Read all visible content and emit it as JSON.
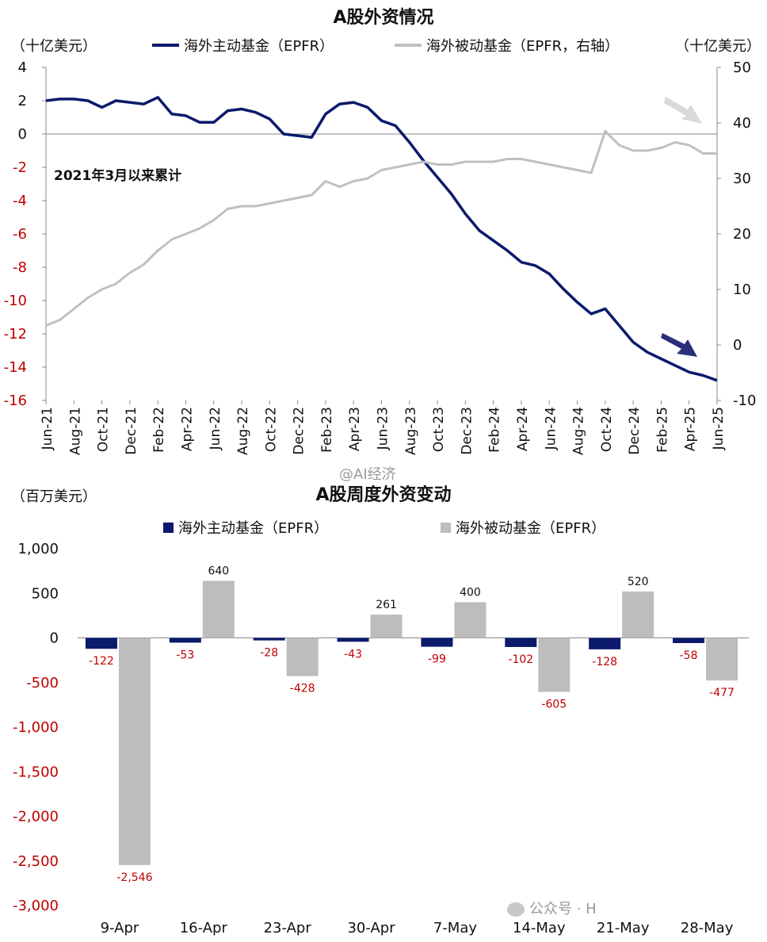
{
  "chart_data": [
    {
      "type": "line",
      "title": "A股外资情况",
      "ylabel": "（十亿美元）",
      "y2label": "（十亿美元）",
      "annotation": "2021年3月以来累计",
      "ylim": [
        -16,
        4
      ],
      "y2lim": [
        -10,
        50
      ],
      "grid": false,
      "legend_position": "top",
      "x_ticks": [
        "Jun-21",
        "Aug-21",
        "Oct-21",
        "Dec-21",
        "Feb-22",
        "Apr-22",
        "Jun-22",
        "Aug-22",
        "Oct-22",
        "Dec-22",
        "Feb-23",
        "Apr-23",
        "Jun-23",
        "Aug-23",
        "Oct-23",
        "Dec-23",
        "Feb-24",
        "Apr-24",
        "Jun-24",
        "Aug-24",
        "Oct-24",
        "Dec-24",
        "Feb-25",
        "Apr-25",
        "Jun-25"
      ],
      "y_ticks": [
        "4",
        "2",
        "0",
        "-2",
        "-4",
        "-6",
        "-8",
        "-10",
        "-12",
        "-14",
        "-16"
      ],
      "y2_ticks": [
        "50",
        "40",
        "30",
        "20",
        "10",
        "0",
        "-10"
      ],
      "series": [
        {
          "name": "海外主动基金（EPFR）",
          "axis": "left",
          "color": "#0b1a6b",
          "values": [
            [
              "Jun-21",
              2.0
            ],
            [
              "Jul-21",
              2.1
            ],
            [
              "Aug-21",
              2.1
            ],
            [
              "Sep-21",
              2.0
            ],
            [
              "Oct-21",
              1.6
            ],
            [
              "Nov-21",
              2.0
            ],
            [
              "Dec-21",
              1.9
            ],
            [
              "Jan-22",
              1.8
            ],
            [
              "Feb-22",
              2.2
            ],
            [
              "Mar-22",
              1.2
            ],
            [
              "Apr-22",
              1.1
            ],
            [
              "May-22",
              0.7
            ],
            [
              "Jun-22",
              0.7
            ],
            [
              "Jul-22",
              1.4
            ],
            [
              "Aug-22",
              1.5
            ],
            [
              "Sep-22",
              1.3
            ],
            [
              "Oct-22",
              0.9
            ],
            [
              "Nov-22",
              0.0
            ],
            [
              "Dec-22",
              -0.1
            ],
            [
              "Jan-23",
              -0.2
            ],
            [
              "Feb-23",
              1.2
            ],
            [
              "Mar-23",
              1.8
            ],
            [
              "Apr-23",
              1.9
            ],
            [
              "May-23",
              1.6
            ],
            [
              "Jun-23",
              0.8
            ],
            [
              "Jul-23",
              0.5
            ],
            [
              "Aug-23",
              -0.5
            ],
            [
              "Sep-23",
              -1.6
            ],
            [
              "Oct-23",
              -2.6
            ],
            [
              "Nov-23",
              -3.6
            ],
            [
              "Dec-23",
              -4.8
            ],
            [
              "Jan-24",
              -5.8
            ],
            [
              "Feb-24",
              -6.4
            ],
            [
              "Mar-24",
              -7.0
            ],
            [
              "Apr-24",
              -7.7
            ],
            [
              "May-24",
              -7.9
            ],
            [
              "Jun-24",
              -8.4
            ],
            [
              "Jul-24",
              -9.3
            ],
            [
              "Aug-24",
              -10.1
            ],
            [
              "Sep-24",
              -10.8
            ],
            [
              "Oct-24",
              -10.5
            ],
            [
              "Nov-24",
              -11.5
            ],
            [
              "Dec-24",
              -12.5
            ],
            [
              "Jan-25",
              -13.1
            ],
            [
              "Feb-25",
              -13.5
            ],
            [
              "Mar-25",
              -13.9
            ],
            [
              "Apr-25",
              -14.3
            ],
            [
              "May-25",
              -14.5
            ],
            [
              "Jun-25",
              -14.8
            ]
          ]
        },
        {
          "name": "海外被动基金（EPFR，右轴",
          "axis": "right",
          "color": "#c0c0c0",
          "values": [
            [
              "Jun-21",
              3.5
            ],
            [
              "Jul-21",
              4.5
            ],
            [
              "Aug-21",
              6.5
            ],
            [
              "Sep-21",
              8.5
            ],
            [
              "Oct-21",
              10.0
            ],
            [
              "Nov-21",
              11.0
            ],
            [
              "Dec-21",
              13.0
            ],
            [
              "Jan-22",
              14.5
            ],
            [
              "Feb-22",
              17.0
            ],
            [
              "Mar-22",
              19.0
            ],
            [
              "Apr-22",
              20.0
            ],
            [
              "May-22",
              21.0
            ],
            [
              "Jun-22",
              22.5
            ],
            [
              "Jul-22",
              24.5
            ],
            [
              "Aug-22",
              25.0
            ],
            [
              "Sep-22",
              25.0
            ],
            [
              "Oct-22",
              25.5
            ],
            [
              "Nov-22",
              26.0
            ],
            [
              "Dec-22",
              26.5
            ],
            [
              "Jan-23",
              27.0
            ],
            [
              "Feb-23",
              29.5
            ],
            [
              "Mar-23",
              28.5
            ],
            [
              "Apr-23",
              29.5
            ],
            [
              "May-23",
              30.0
            ],
            [
              "Jun-23",
              31.5
            ],
            [
              "Jul-23",
              32.0
            ],
            [
              "Aug-23",
              32.5
            ],
            [
              "Sep-23",
              33.0
            ],
            [
              "Oct-23",
              32.5
            ],
            [
              "Nov-23",
              32.5
            ],
            [
              "Dec-23",
              33.0
            ],
            [
              "Jan-24",
              33.0
            ],
            [
              "Feb-24",
              33.0
            ],
            [
              "Mar-24",
              33.5
            ],
            [
              "Apr-24",
              33.5
            ],
            [
              "May-24",
              33.0
            ],
            [
              "Jun-24",
              32.5
            ],
            [
              "Jul-24",
              32.0
            ],
            [
              "Aug-24",
              31.5
            ],
            [
              "Sep-24",
              31.0
            ],
            [
              "Oct-24",
              38.5
            ],
            [
              "Nov-24",
              36.0
            ],
            [
              "Dec-24",
              35.0
            ],
            [
              "Jan-25",
              35.0
            ],
            [
              "Feb-25",
              35.5
            ],
            [
              "Mar-25",
              36.5
            ],
            [
              "Apr-25",
              36.0
            ],
            [
              "May-25",
              34.5
            ],
            [
              "Jun-25",
              34.5
            ]
          ]
        }
      ]
    },
    {
      "type": "bar",
      "title": "A股周度外资变动",
      "ylabel": "（百万美元）",
      "ylim": [
        -3000,
        1000
      ],
      "y_ticks": [
        "1,000",
        "500",
        "0",
        "-500",
        "-1,000",
        "-1,500",
        "-2,000",
        "-2,500",
        "-3,000"
      ],
      "grid": false,
      "legend_position": "top",
      "categories": [
        "9-Apr",
        "16-Apr",
        "23-Apr",
        "30-Apr",
        "7-May",
        "14-May",
        "21-May",
        "28-May"
      ],
      "series": [
        {
          "name": "海外主动基金（EPFR）",
          "color": "#0b1a6b",
          "values": [
            -122,
            -53,
            -28,
            -43,
            -99,
            -102,
            -128,
            -58
          ],
          "labels": [
            "-122",
            "-53",
            "-28",
            "-43",
            "-99",
            "-102",
            "-128",
            "-58"
          ]
        },
        {
          "name": "海外被动基金（EPFR）",
          "color": "#bdbdbd",
          "values": [
            -2546,
            640,
            -428,
            261,
            400,
            -605,
            520,
            -477
          ],
          "labels": [
            "-2,546",
            "640",
            "-428",
            "261",
            "400",
            "-605",
            "520",
            "-477"
          ]
        }
      ]
    }
  ],
  "watermarks": {
    "center": "@AI经济",
    "bottom_right": "公众号 · H"
  }
}
